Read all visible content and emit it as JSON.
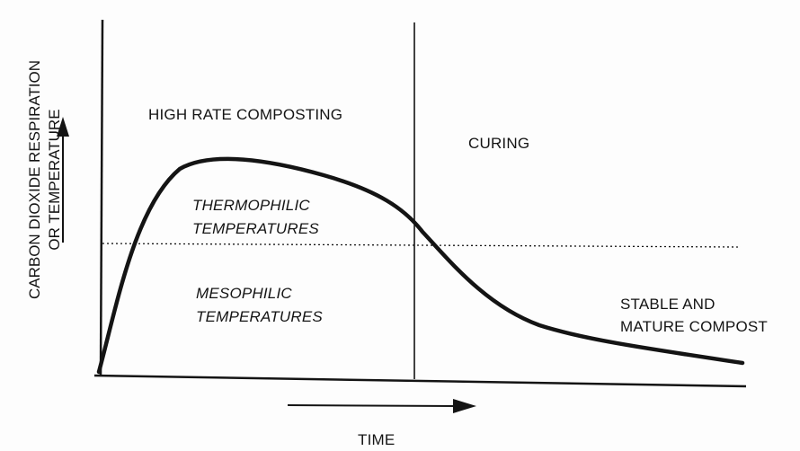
{
  "diagram": {
    "y_axis_label": [
      "CARBON DIOXIDE RESPIRATION",
      "OR TEMPERATURE"
    ],
    "x_axis_label": "TIME",
    "regions": {
      "high_rate": "HIGH RATE COMPOSTING",
      "curing": "CURING"
    },
    "temperature_bands": {
      "thermophilic": [
        "THERMOPHILIC",
        "TEMPERATURES"
      ],
      "mesophilic": [
        "MESOPHILIC",
        "TEMPERATURES"
      ]
    },
    "end_state": [
      "STABLE AND",
      "MATURE COMPOST"
    ],
    "colors": {
      "ink": "#141414",
      "background": "#fdfdfd"
    }
  }
}
